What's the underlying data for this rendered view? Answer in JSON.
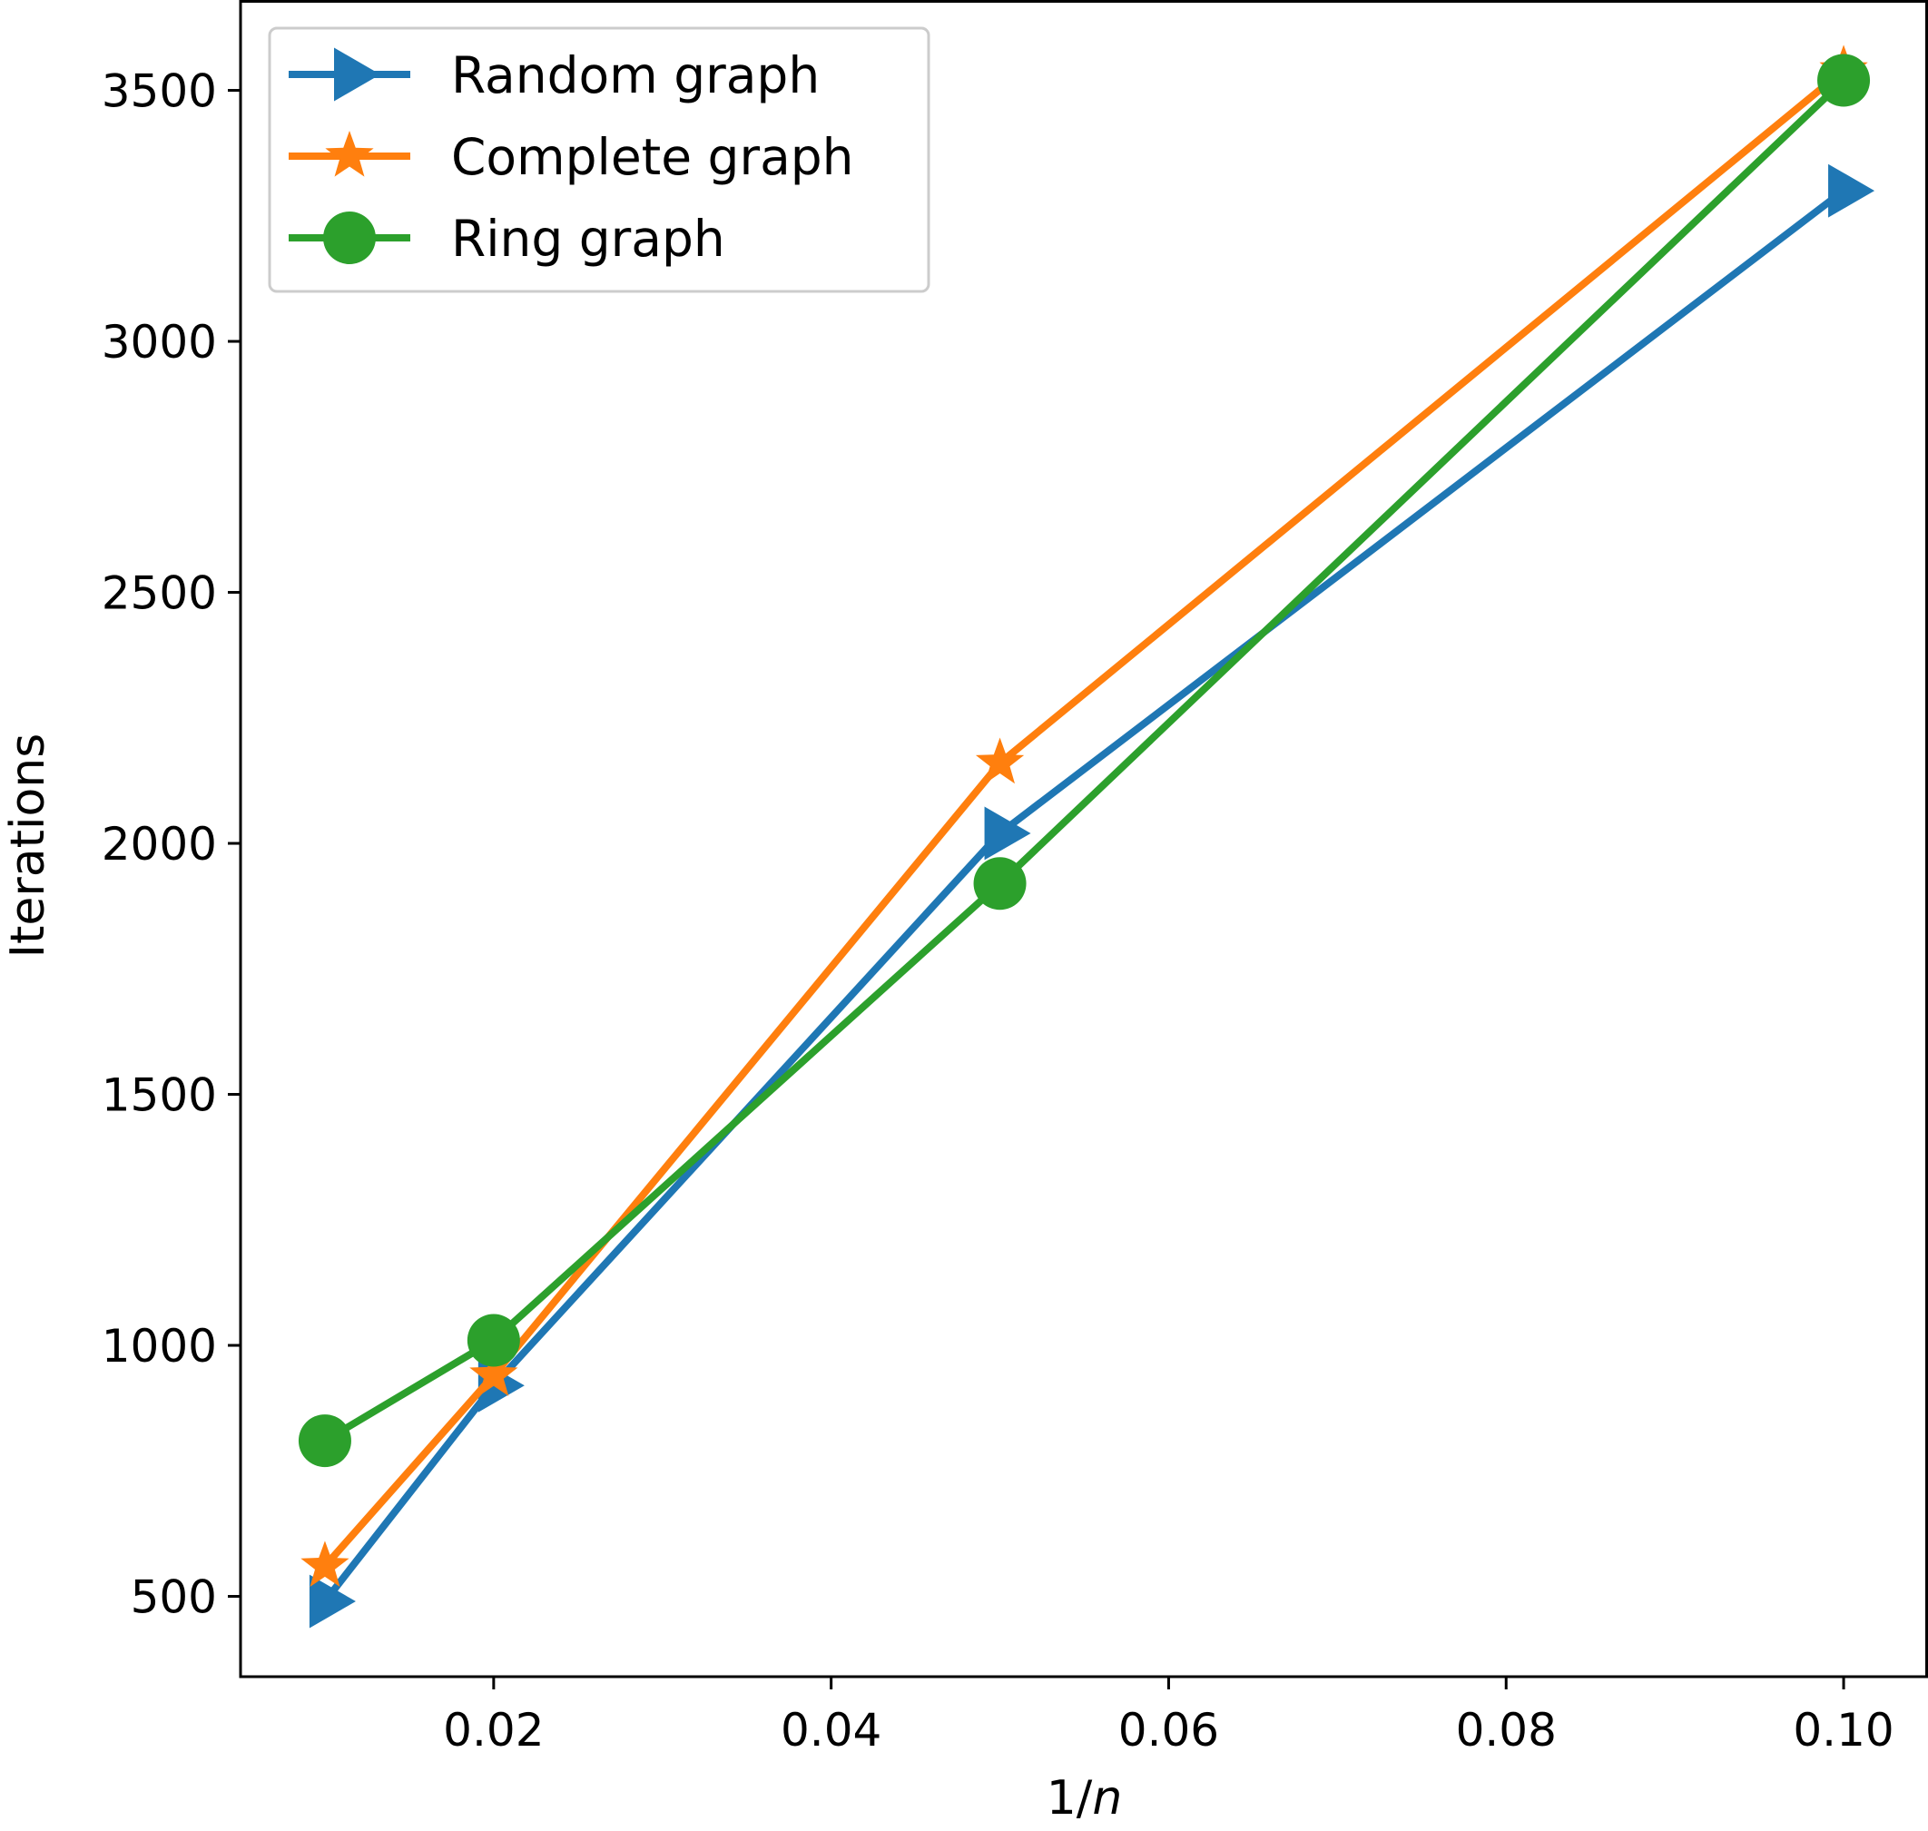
{
  "chart_data": {
    "type": "line",
    "xlabel": "1/n",
    "ylabel": "Iterations",
    "xlim": [
      0.005,
      0.105
    ],
    "ylim": [
      340,
      3680
    ],
    "x_ticks": [
      0.02,
      0.04,
      0.06,
      0.08,
      0.1
    ],
    "x_tick_labels": [
      "0.02",
      "0.04",
      "0.06",
      "0.08",
      "0.10"
    ],
    "y_ticks": [
      500,
      1000,
      1500,
      2000,
      2500,
      3000,
      3500
    ],
    "y_tick_labels": [
      "500",
      "1000",
      "1500",
      "2000",
      "2500",
      "3000",
      "3500"
    ],
    "grid": false,
    "legend_position": "top-left",
    "x": [
      0.01,
      0.02,
      0.05,
      0.1
    ],
    "series": [
      {
        "name": "Random graph",
        "marker": "triangle-right",
        "color": "#1f77b4",
        "values": [
          490,
          920,
          2020,
          3300
        ]
      },
      {
        "name": "Complete graph",
        "marker": "star",
        "color": "#ff7f0e",
        "values": [
          560,
          940,
          2160,
          3540
        ]
      },
      {
        "name": "Ring graph",
        "marker": "circle",
        "color": "#2ca02c",
        "values": [
          810,
          1010,
          1920,
          3520
        ]
      }
    ]
  }
}
